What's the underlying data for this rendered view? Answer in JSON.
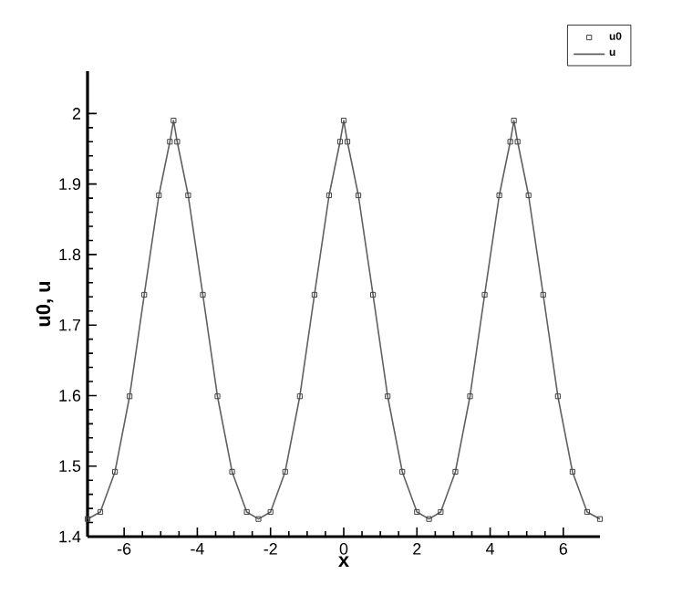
{
  "chart_data": {
    "type": "line",
    "xlabel": "x",
    "ylabel": "u0, u",
    "x": [
      -7.0,
      -6.65,
      -6.25,
      -5.85,
      -5.45,
      -5.05,
      -4.75,
      -4.65,
      -4.55,
      -4.25,
      -3.85,
      -3.45,
      -3.05,
      -2.65,
      -2.33,
      -2.0,
      -1.6,
      -1.2,
      -0.8,
      -0.4,
      -0.1,
      0,
      0.1,
      0.4,
      0.8,
      1.2,
      1.6,
      2.0,
      2.33,
      2.65,
      3.05,
      3.45,
      3.85,
      4.25,
      4.55,
      4.65,
      4.75,
      5.05,
      5.45,
      5.85,
      6.25,
      6.65,
      7.0
    ],
    "series": [
      {
        "name": "u0",
        "type": "scatter",
        "marker": "square",
        "color": "#404040",
        "values": [
          1.425,
          1.435,
          1.492,
          1.599,
          1.743,
          1.884,
          1.96,
          1.99,
          1.96,
          1.884,
          1.743,
          1.599,
          1.492,
          1.435,
          1.425,
          1.435,
          1.492,
          1.599,
          1.743,
          1.884,
          1.96,
          1.99,
          1.96,
          1.884,
          1.743,
          1.599,
          1.492,
          1.435,
          1.425,
          1.435,
          1.492,
          1.599,
          1.743,
          1.884,
          1.96,
          1.99,
          1.96,
          1.884,
          1.743,
          1.599,
          1.492,
          1.435,
          1.425
        ]
      },
      {
        "name": "u",
        "marker": "none",
        "line_style": "solid",
        "color": "#606060",
        "values": [
          1.425,
          1.435,
          1.492,
          1.599,
          1.743,
          1.884,
          1.96,
          1.99,
          1.96,
          1.884,
          1.743,
          1.599,
          1.492,
          1.435,
          1.425,
          1.435,
          1.492,
          1.599,
          1.743,
          1.884,
          1.96,
          1.99,
          1.96,
          1.884,
          1.743,
          1.599,
          1.492,
          1.435,
          1.425,
          1.435,
          1.492,
          1.599,
          1.743,
          1.884,
          1.96,
          1.99,
          1.96,
          1.884,
          1.743,
          1.599,
          1.492,
          1.435,
          1.425
        ]
      }
    ],
    "xlim": [
      -7,
      7
    ],
    "xticks": [
      -6,
      -4,
      -2,
      0,
      2,
      4,
      6
    ],
    "ylim": [
      1.4,
      2.06
    ],
    "yticks": [
      1.4,
      1.5,
      1.6,
      1.7,
      1.8,
      1.9,
      2
    ],
    "grid": false,
    "legend": "top right"
  }
}
